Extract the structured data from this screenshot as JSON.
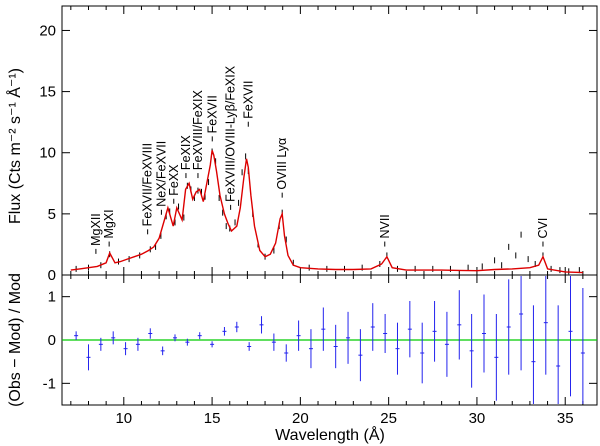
{
  "chart_data": [
    {
      "panel": "top",
      "type": "line",
      "ylabel": "Flux (Cts m⁻² s⁻¹ Å⁻¹)",
      "xlim": [
        6.5,
        36.8
      ],
      "ylim": [
        0,
        22
      ],
      "yticks": [
        0,
        5,
        10,
        15,
        20
      ],
      "xticks": [
        10,
        15,
        20,
        25,
        30,
        35
      ],
      "series": [
        {
          "name": "model",
          "color": "#dd0000",
          "x": [
            7.0,
            7.5,
            8.0,
            8.5,
            9.0,
            9.2,
            9.5,
            9.8,
            10.2,
            10.6,
            11.0,
            11.4,
            11.7,
            12.0,
            12.3,
            12.5,
            12.8,
            13.0,
            13.3,
            13.5,
            13.7,
            13.9,
            14.1,
            14.3,
            14.5,
            14.7,
            14.9,
            15.0,
            15.1,
            15.25,
            15.45,
            15.7,
            15.9,
            16.1,
            16.4,
            16.6,
            16.8,
            16.95,
            17.05,
            17.2,
            17.4,
            17.7,
            18.0,
            18.3,
            18.6,
            18.85,
            18.97,
            19.1,
            19.3,
            19.6,
            20.0,
            21.0,
            22.0,
            23.0,
            24.0,
            24.6,
            24.9,
            25.2,
            26.0,
            27.0,
            28.0,
            29.0,
            30.0,
            31.0,
            32.0,
            33.0,
            33.5,
            33.74,
            34.0,
            35.0,
            36.0
          ],
          "y": [
            0.4,
            0.5,
            0.6,
            0.7,
            1.0,
            1.8,
            1.0,
            1.1,
            1.3,
            1.5,
            1.7,
            2.0,
            2.3,
            3.0,
            4.5,
            5.5,
            4.0,
            5.5,
            4.5,
            7.0,
            7.5,
            6.2,
            6.8,
            7.0,
            6.0,
            7.5,
            9.0,
            10.2,
            9.8,
            8.5,
            6.5,
            5.0,
            4.2,
            3.6,
            4.0,
            5.5,
            8.0,
            9.5,
            8.8,
            6.5,
            4.0,
            2.0,
            1.5,
            1.7,
            2.6,
            4.6,
            5.0,
            3.2,
            1.6,
            0.8,
            0.6,
            0.5,
            0.45,
            0.45,
            0.5,
            0.9,
            1.5,
            0.6,
            0.4,
            0.4,
            0.4,
            0.38,
            0.35,
            0.45,
            0.5,
            0.6,
            0.8,
            1.5,
            0.5,
            0.25,
            0.2
          ]
        },
        {
          "name": "data",
          "color": "#000000",
          "x": [
            7.3,
            8.0,
            8.7,
            9.2,
            9.7,
            10.3,
            10.9,
            11.5,
            11.8,
            12.1,
            12.4,
            12.6,
            12.9,
            13.1,
            13.4,
            13.6,
            13.8,
            14.0,
            14.2,
            14.4,
            14.6,
            14.8,
            15.0,
            15.2,
            15.4,
            15.6,
            15.8,
            16.0,
            16.3,
            16.5,
            16.7,
            16.9,
            17.05,
            17.3,
            17.6,
            18.0,
            18.5,
            18.8,
            18.97,
            19.2,
            19.6,
            20.5,
            21.5,
            22.5,
            23.5,
            24.5,
            24.9,
            25.5,
            26.5,
            27.5,
            28.5,
            29.5,
            30.3,
            31.0,
            31.4,
            31.8,
            32.2,
            32.5,
            32.9,
            33.3,
            33.74,
            34.2,
            34.7,
            35.2,
            35.8
          ],
          "y": [
            0.5,
            0.6,
            0.8,
            1.7,
            1.1,
            1.3,
            1.6,
            2.1,
            2.3,
            3.2,
            4.8,
            5.2,
            4.3,
            5.6,
            4.7,
            7.3,
            7.0,
            6.3,
            6.9,
            6.8,
            6.4,
            7.6,
            10.1,
            9.3,
            6.3,
            5.1,
            4.0,
            3.8,
            4.3,
            5.9,
            8.4,
            9.7,
            8.5,
            5.0,
            2.5,
            1.5,
            2.0,
            4.0,
            5.1,
            2.9,
            1.0,
            0.6,
            0.5,
            0.5,
            0.6,
            0.9,
            1.6,
            0.5,
            0.5,
            0.5,
            0.5,
            0.6,
            0.7,
            1.2,
            0.8,
            2.3,
            1.6,
            3.3,
            1.3,
            0.9,
            1.6,
            0.5,
            0.4,
            0.3,
            0.4
          ]
        }
      ],
      "annotations": [
        {
          "text": "MgXII",
          "x": 8.42,
          "y": 1.4
        },
        {
          "text": "MgXI",
          "x": 9.17,
          "y": 2.0
        },
        {
          "text": "FeXVII/FeXVIII",
          "x": 11.35,
          "y": 3.0
        },
        {
          "text": "NeX/FeXVII",
          "x": 12.13,
          "y": 4.6
        },
        {
          "text": "FeXX",
          "x": 12.83,
          "y": 5.5
        },
        {
          "text": "FeXIX",
          "x": 13.52,
          "y": 7.6
        },
        {
          "text": "FeXVIII/FeXIX",
          "x": 14.2,
          "y": 7.6
        },
        {
          "text": "FeXVII",
          "x": 15.01,
          "y": 10.6
        },
        {
          "text": "FeXVIII/OVIII-Lyβ/FeXIX",
          "x": 16.05,
          "y": 5.0
        },
        {
          "text": "FeXVII",
          "x": 17.05,
          "y": 11.8
        },
        {
          "text": "OVIII Lyα",
          "x": 18.97,
          "y": 6.0
        },
        {
          "text": "NVII",
          "x": 24.78,
          "y": 2.0
        },
        {
          "text": "CVI",
          "x": 33.74,
          "y": 2.0
        }
      ]
    },
    {
      "panel": "bottom",
      "type": "scatter",
      "xlabel": "Wavelength (Å)",
      "ylabel": "(Obs − Mod) / Mod",
      "xlim": [
        6.5,
        36.8
      ],
      "ylim": [
        -1.5,
        1.5
      ],
      "yticks": [
        -1,
        0,
        1
      ],
      "xticks": [
        10,
        15,
        20,
        25,
        30,
        35
      ],
      "reference_line": {
        "y": 0,
        "color": "#00cc00"
      },
      "series": [
        {
          "name": "residuals",
          "color": "#2222ee",
          "x": [
            7.3,
            8.0,
            8.7,
            9.4,
            10.1,
            10.8,
            11.5,
            12.2,
            12.9,
            13.6,
            14.3,
            15.0,
            15.7,
            16.4,
            17.1,
            17.8,
            18.5,
            19.2,
            19.9,
            20.6,
            21.3,
            22.0,
            22.7,
            23.4,
            24.1,
            24.8,
            25.5,
            26.2,
            26.9,
            27.6,
            28.3,
            29.0,
            29.7,
            30.4,
            31.1,
            31.8,
            32.5,
            33.2,
            33.9,
            34.6,
            35.3,
            36.0
          ],
          "y": [
            0.1,
            -0.4,
            -0.1,
            0.05,
            -0.2,
            -0.1,
            0.15,
            -0.25,
            0.05,
            -0.05,
            0.1,
            -0.1,
            0.2,
            0.3,
            -0.15,
            0.35,
            -0.05,
            -0.3,
            0.1,
            -0.2,
            0.25,
            -0.15,
            0.05,
            -0.35,
            0.3,
            0.15,
            -0.2,
            0.25,
            -0.3,
            0.2,
            -0.1,
            0.35,
            -0.25,
            0.15,
            -0.4,
            0.3,
            0.6,
            -0.5,
            0.4,
            -0.6,
            0.2,
            -0.3
          ],
          "err": [
            0.1,
            0.3,
            0.15,
            0.15,
            0.15,
            0.15,
            0.12,
            0.1,
            0.08,
            0.08,
            0.08,
            0.07,
            0.1,
            0.12,
            0.1,
            0.2,
            0.2,
            0.2,
            0.35,
            0.45,
            0.5,
            0.5,
            0.6,
            0.6,
            0.55,
            0.45,
            0.6,
            0.65,
            0.7,
            0.7,
            0.75,
            0.8,
            0.85,
            0.9,
            1.0,
            1.1,
            1.3,
            1.3,
            1.2,
            1.4,
            1.5,
            1.5
          ]
        }
      ]
    }
  ]
}
